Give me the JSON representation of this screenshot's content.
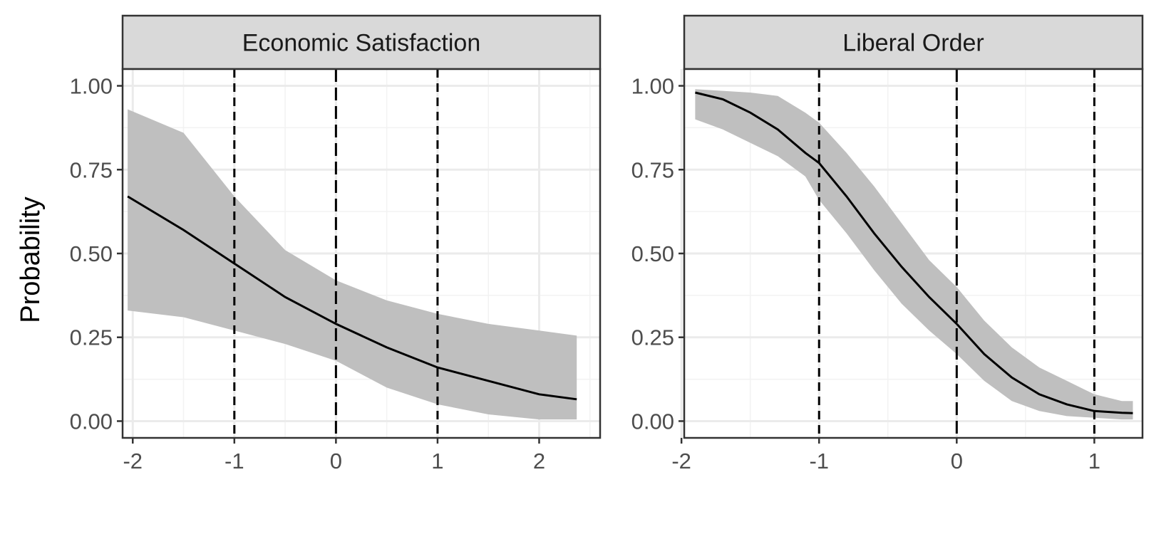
{
  "chart_data": {
    "type": "line",
    "ylabel": "Probability",
    "xlabel": "",
    "panels": [
      {
        "title": "Economic Satisfaction",
        "xlim": [
          -2.1,
          2.6
        ],
        "ylim": [
          -0.05,
          1.05
        ],
        "xticks": [
          -2,
          -1,
          0,
          1,
          2
        ],
        "tick_labels_x": [
          "-2",
          "-1",
          "0",
          "1",
          "2"
        ],
        "yticks": [
          0,
          0.25,
          0.5,
          0.75,
          1
        ],
        "tick_labels_y": [
          "0.00",
          "0.25",
          "0.50",
          "0.75",
          "1.00"
        ],
        "vlines": [
          -1,
          0,
          1
        ],
        "series": [
          {
            "x": [
              -2.05,
              -1.5,
              -1.0,
              -0.5,
              0.0,
              0.5,
              1.0,
              1.5,
              2.0,
              2.37
            ],
            "y": [
              0.67,
              0.57,
              0.47,
              0.37,
              0.29,
              0.22,
              0.16,
              0.12,
              0.08,
              0.065
            ],
            "lower": [
              0.33,
              0.31,
              0.27,
              0.23,
              0.18,
              0.1,
              0.05,
              0.02,
              0.005,
              0.005
            ],
            "upper": [
              0.93,
              0.86,
              0.67,
              0.51,
              0.42,
              0.36,
              0.32,
              0.29,
              0.27,
              0.255
            ]
          }
        ]
      },
      {
        "title": "Liberal Order",
        "xlim": [
          -1.98,
          1.35
        ],
        "ylim": [
          -0.05,
          1.05
        ],
        "xticks": [
          -2,
          -1,
          0,
          1
        ],
        "tick_labels_x": [
          "-2",
          "-1",
          "0",
          "1"
        ],
        "yticks": [
          0,
          0.25,
          0.5,
          0.75,
          1
        ],
        "tick_labels_y": [
          "0.00",
          "0.25",
          "0.50",
          "0.75",
          "1.00"
        ],
        "vlines": [
          -1,
          0,
          1
        ],
        "series": [
          {
            "x": [
              -1.9,
              -1.7,
              -1.5,
              -1.3,
              -1.1,
              -1.0,
              -0.8,
              -0.6,
              -0.4,
              -0.2,
              0.0,
              0.2,
              0.4,
              0.6,
              0.8,
              1.0,
              1.2,
              1.28
            ],
            "y": [
              0.98,
              0.96,
              0.92,
              0.87,
              0.8,
              0.77,
              0.67,
              0.56,
              0.46,
              0.37,
              0.29,
              0.2,
              0.13,
              0.08,
              0.05,
              0.03,
              0.025,
              0.024
            ],
            "lower": [
              0.9,
              0.87,
              0.83,
              0.79,
              0.73,
              0.66,
              0.56,
              0.45,
              0.35,
              0.27,
              0.2,
              0.12,
              0.06,
              0.03,
              0.015,
              0.01,
              0.005,
              0.005
            ],
            "upper": [
              0.99,
              0.985,
              0.98,
              0.97,
              0.92,
              0.89,
              0.8,
              0.7,
              0.59,
              0.48,
              0.4,
              0.3,
              0.22,
              0.16,
              0.12,
              0.08,
              0.06,
              0.06
            ]
          }
        ]
      }
    ]
  }
}
